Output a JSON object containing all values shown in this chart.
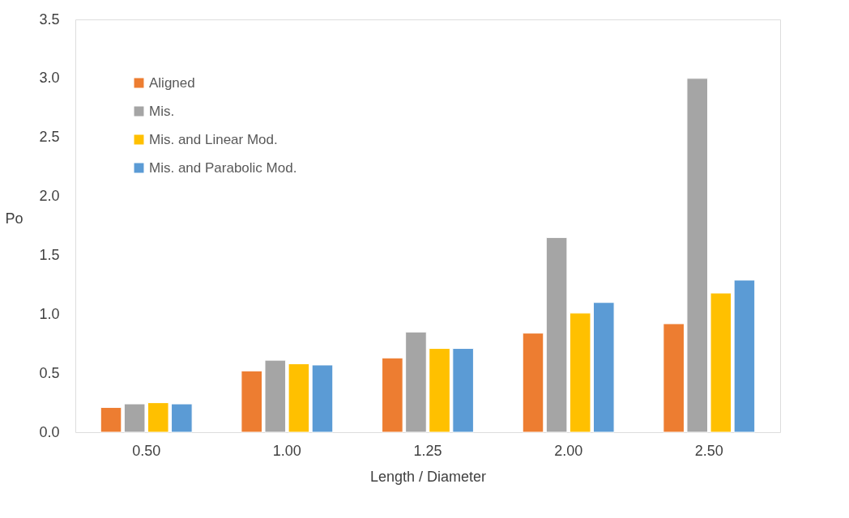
{
  "chart_data": {
    "type": "bar",
    "xlabel": "Length / Diameter",
    "ylabel": "Po",
    "categories": [
      "0.50",
      "1.00",
      "1.25",
      "2.00",
      "2.50"
    ],
    "series": [
      {
        "name": "Aligned",
        "color": "#ed7d31",
        "values": [
          0.21,
          0.52,
          0.63,
          0.84,
          0.92
        ]
      },
      {
        "name": "Mis.",
        "color": "#a5a5a5",
        "values": [
          0.24,
          0.61,
          0.85,
          1.65,
          3.0
        ]
      },
      {
        "name": "Mis. and Linear Mod.",
        "color": "#ffc000",
        "values": [
          0.25,
          0.58,
          0.71,
          1.01,
          1.18
        ]
      },
      {
        "name": "Mis. and Parabolic Mod.",
        "color": "#5b9bd5",
        "values": [
          0.24,
          0.57,
          0.71,
          1.1,
          1.29
        ]
      }
    ],
    "ylim": [
      0,
      3.5
    ],
    "yticks": [
      {
        "value": 0,
        "label": "0.0"
      },
      {
        "value": 0.5,
        "label": "0.5"
      },
      {
        "value": 1,
        "label": "1.0"
      },
      {
        "value": 1.5,
        "label": "1.5"
      },
      {
        "value": 2,
        "label": "2.0"
      },
      {
        "value": 2.5,
        "label": "2.5"
      },
      {
        "value": 3,
        "label": "3.0"
      },
      {
        "value": 3.5,
        "label": "3.5"
      }
    ],
    "grid": false,
    "legend": "top left"
  }
}
